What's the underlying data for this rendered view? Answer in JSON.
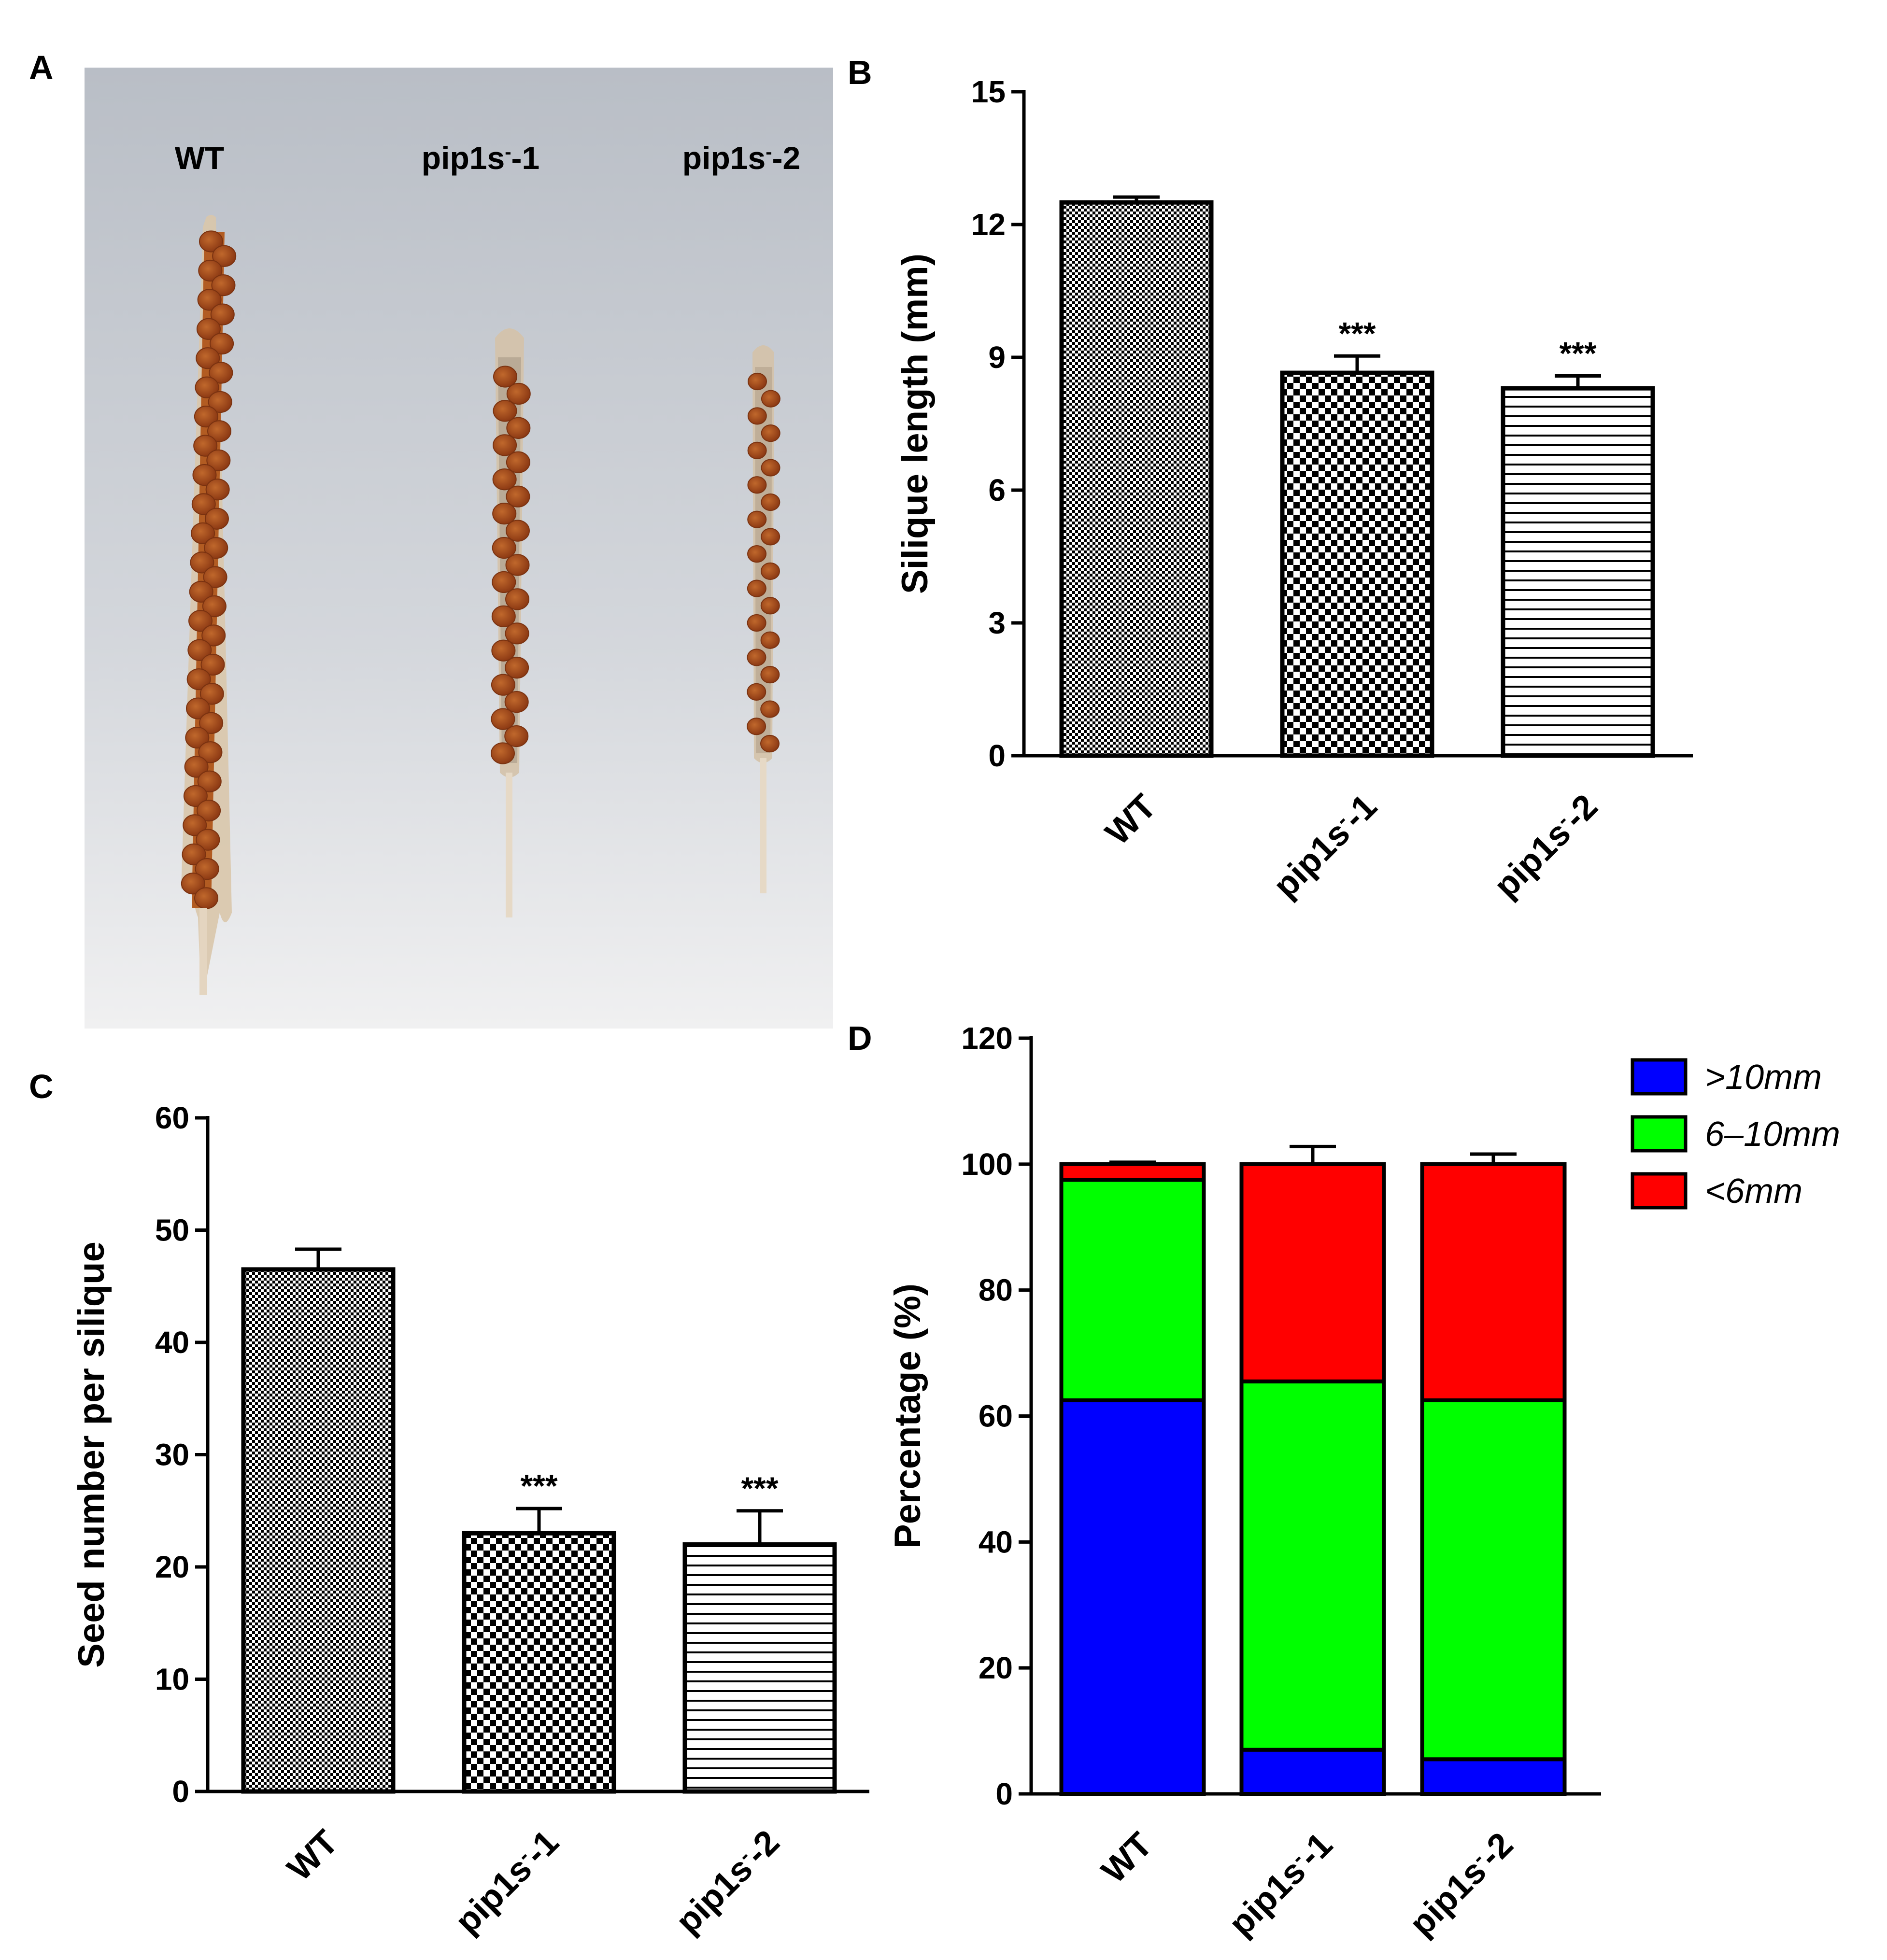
{
  "figure": {
    "panels": [
      "A",
      "B",
      "C",
      "D"
    ]
  },
  "photo": {
    "labels": [
      "WT",
      "pip1s",
      "-1",
      "pip1s",
      "-2"
    ],
    "description_colors": {
      "background": "#c7ccd3",
      "silique": "#a8551f",
      "seed": "#a0471a",
      "pod": "#d8cbb8"
    }
  },
  "chart_data": [
    {
      "id": "B",
      "type": "bar",
      "categories": [
        "WT",
        "pip1s⁻-1",
        "pip1s⁻-2"
      ],
      "values": [
        12.5,
        8.65,
        8.3
      ],
      "errors": [
        0.12,
        0.38,
        0.28
      ],
      "significance": [
        "",
        "***",
        "***"
      ],
      "patterns": [
        "fine-check",
        "check",
        "hlines"
      ],
      "title": "",
      "xlabel": "",
      "ylabel": "Silique length (mm)",
      "ylim": [
        0,
        15
      ],
      "yticks": [
        0,
        3,
        6,
        9,
        12,
        15
      ]
    },
    {
      "id": "C",
      "type": "bar",
      "categories": [
        "WT",
        "pip1s⁻-1",
        "pip1s⁻-2"
      ],
      "values": [
        46.5,
        23.0,
        22.0
      ],
      "errors": [
        1.8,
        2.2,
        3.0
      ],
      "significance": [
        "",
        "***",
        "***"
      ],
      "patterns": [
        "fine-check",
        "check",
        "hlines"
      ],
      "title": "",
      "xlabel": "",
      "ylabel": "Seed number per silique",
      "ylim": [
        0,
        60
      ],
      "yticks": [
        0,
        10,
        20,
        30,
        40,
        50,
        60
      ]
    },
    {
      "id": "D",
      "type": "stacked-bar",
      "categories": [
        "WT",
        "pip1s⁻-1",
        "pip1s⁻-2"
      ],
      "series": [
        {
          "name": ">10mm",
          "color": "#0000ff",
          "values": [
            62.5,
            7.0,
            5.5
          ],
          "errors": [
            1.2,
            0.5,
            0.4
          ]
        },
        {
          "name": "6–10mm",
          "color": "#00ff00",
          "values": [
            35.0,
            58.5,
            57.0
          ],
          "errors": [
            0,
            2.5,
            1.8
          ]
        },
        {
          "name": "<6mm",
          "color": "#ff0000",
          "values": [
            2.5,
            34.5,
            37.5
          ],
          "errors": [
            0.3,
            2.8,
            1.6
          ]
        }
      ],
      "title": "",
      "xlabel": "",
      "ylabel": "Percentage (%)",
      "ylim": [
        0,
        120
      ],
      "yticks": [
        0,
        20,
        40,
        60,
        80,
        100,
        120
      ],
      "legend": "top-right"
    }
  ]
}
